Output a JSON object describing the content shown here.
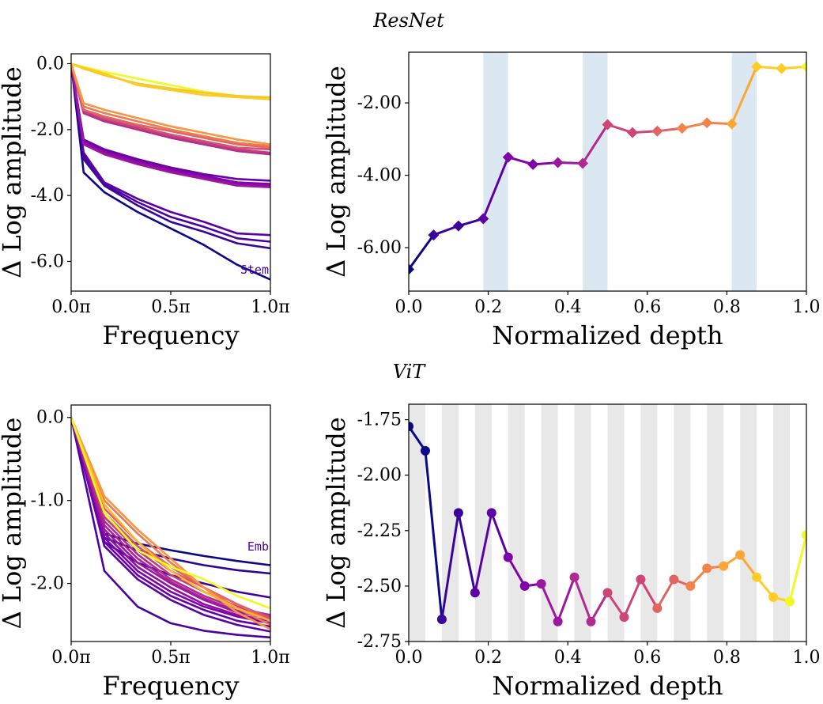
{
  "titles": {
    "resnet": "ResNet",
    "vit": "ViT"
  },
  "chart_data": [
    {
      "type": "line",
      "xlabel": "Frequency",
      "ylabel": "Δ Log amplitude",
      "xlim": [
        0,
        1
      ],
      "ylim": [
        -6.9,
        0.3
      ],
      "xticks": [
        {
          "v": 0,
          "label": "0.0π"
        },
        {
          "v": 0.5,
          "label": "0.5π"
        },
        {
          "v": 1,
          "label": "1.0π"
        }
      ],
      "yticks": [
        {
          "v": 0,
          "label": "0.0"
        },
        {
          "v": -2,
          "label": "-2.0"
        },
        {
          "v": -4,
          "label": "-4.0"
        },
        {
          "v": -6,
          "label": "-6.0"
        }
      ],
      "annotation": "Stem",
      "x": [
        0,
        0.0625,
        0.1667,
        0.3333,
        0.5,
        0.6667,
        0.8333,
        1.0
      ],
      "series": [
        {
          "color": "#0d0887",
          "values": [
            0,
            -3.3,
            -3.9,
            -4.5,
            -5.0,
            -5.5,
            -6.1,
            -6.55
          ]
        },
        {
          "color": "#3a049a",
          "values": [
            0,
            -2.9,
            -3.7,
            -4.3,
            -4.8,
            -5.1,
            -5.45,
            -5.6
          ]
        },
        {
          "color": "#4c02a1",
          "values": [
            0,
            -2.8,
            -3.65,
            -4.2,
            -4.65,
            -4.95,
            -5.3,
            -5.4
          ]
        },
        {
          "color": "#5c01a6",
          "values": [
            0,
            -2.7,
            -3.6,
            -4.1,
            -4.5,
            -4.8,
            -5.15,
            -5.2
          ]
        },
        {
          "color": "#6a00a8",
          "values": [
            0,
            -2.3,
            -2.6,
            -2.9,
            -3.15,
            -3.35,
            -3.5,
            -3.55
          ]
        },
        {
          "color": "#7e03a8",
          "values": [
            0,
            -2.35,
            -2.65,
            -2.95,
            -3.2,
            -3.4,
            -3.6,
            -3.65
          ]
        },
        {
          "color": "#8f0da4",
          "values": [
            0,
            -2.4,
            -2.7,
            -3.0,
            -3.25,
            -3.45,
            -3.65,
            -3.7
          ]
        },
        {
          "color": "#9c179e",
          "values": [
            0,
            -2.45,
            -2.75,
            -3.05,
            -3.3,
            -3.5,
            -3.7,
            -3.75
          ]
        },
        {
          "color": "#b12a90",
          "values": [
            0,
            -1.5,
            -1.75,
            -2.0,
            -2.25,
            -2.45,
            -2.65,
            -2.75
          ]
        },
        {
          "color": "#c43c7f",
          "values": [
            0,
            -1.45,
            -1.7,
            -1.95,
            -2.2,
            -2.4,
            -2.6,
            -2.7
          ]
        },
        {
          "color": "#d35171",
          "values": [
            0,
            -1.4,
            -1.65,
            -1.9,
            -2.15,
            -2.35,
            -2.55,
            -2.6
          ]
        },
        {
          "color": "#e16462",
          "values": [
            0,
            -1.4,
            -1.6,
            -1.85,
            -2.05,
            -2.25,
            -2.45,
            -2.55
          ]
        },
        {
          "color": "#ed7953",
          "values": [
            0,
            -1.3,
            -1.5,
            -1.75,
            -2.0,
            -2.2,
            -2.4,
            -2.5
          ]
        },
        {
          "color": "#f89540",
          "values": [
            0,
            -1.2,
            -1.4,
            -1.65,
            -1.9,
            -2.1,
            -2.3,
            -2.45
          ]
        },
        {
          "color": "#f0f921",
          "values": [
            0,
            -0.1,
            -0.25,
            -0.45,
            -0.65,
            -0.85,
            -0.98,
            -1.05
          ]
        },
        {
          "color": "#f1c92c",
          "values": [
            0,
            -0.15,
            -0.35,
            -0.6,
            -0.75,
            -0.88,
            -0.98,
            -1.02
          ]
        },
        {
          "color": "#fccc25",
          "values": [
            0,
            -0.12,
            -0.3,
            -0.65,
            -0.8,
            -0.95,
            -1.02,
            -1.08
          ]
        }
      ]
    },
    {
      "type": "line",
      "xlabel": "Normalized depth",
      "ylabel": "Δ Log amplitude",
      "xlim": [
        0,
        1
      ],
      "ylim": [
        -7.2,
        -0.6
      ],
      "xticks": [
        {
          "v": 0,
          "label": "0.0"
        },
        {
          "v": 0.2,
          "label": "0.2"
        },
        {
          "v": 0.4,
          "label": "0.4"
        },
        {
          "v": 0.6,
          "label": "0.6"
        },
        {
          "v": 0.8,
          "label": "0.8"
        },
        {
          "v": 1,
          "label": "1.0"
        }
      ],
      "yticks": [
        {
          "v": -2,
          "label": "-2.00"
        },
        {
          "v": -4,
          "label": "-4.00"
        },
        {
          "v": -6,
          "label": "-6.00"
        }
      ],
      "marker": "diamond",
      "shaded_ranges": [
        [
          0.1875,
          0.25
        ],
        [
          0.4375,
          0.5
        ],
        [
          0.8125,
          0.875
        ]
      ],
      "shade_color": "#dce8f1",
      "x": [
        0,
        0.0625,
        0.125,
        0.1875,
        0.25,
        0.3125,
        0.375,
        0.4375,
        0.5,
        0.5625,
        0.625,
        0.6875,
        0.75,
        0.8125,
        0.875,
        0.9375,
        1.0
      ],
      "values": [
        -6.6,
        -5.65,
        -5.4,
        -5.2,
        -3.5,
        -3.7,
        -3.65,
        -3.67,
        -2.6,
        -2.82,
        -2.78,
        -2.7,
        -2.55,
        -2.58,
        -1.0,
        -1.05,
        -1.0
      ]
    },
    {
      "type": "line",
      "xlabel": "Frequency",
      "ylabel": "Δ Log amplitude",
      "xlim": [
        0,
        1
      ],
      "ylim": [
        -2.7,
        0.15
      ],
      "xticks": [
        {
          "v": 0,
          "label": "0.0π"
        },
        {
          "v": 0.5,
          "label": "0.5π"
        },
        {
          "v": 1,
          "label": "1.0π"
        }
      ],
      "yticks": [
        {
          "v": 0,
          "label": "0.0"
        },
        {
          "v": -1,
          "label": "-1.0"
        },
        {
          "v": -2,
          "label": "-2.0"
        }
      ],
      "annotation": "Emb",
      "x": [
        0,
        0.1667,
        0.3333,
        0.5,
        0.6667,
        0.8333,
        1.0
      ],
      "series": [
        {
          "color": "#0d0887",
          "values": [
            0,
            -1.4,
            -1.52,
            -1.6,
            -1.67,
            -1.73,
            -1.78
          ]
        },
        {
          "color": "#2c0594",
          "values": [
            0,
            -1.45,
            -1.6,
            -1.7,
            -1.78,
            -1.84,
            -1.88
          ]
        },
        {
          "color": "#3a049a",
          "values": [
            0,
            -1.5,
            -1.75,
            -1.9,
            -2.0,
            -2.1,
            -2.17
          ]
        },
        {
          "color": "#4c02a1",
          "values": [
            0,
            -1.85,
            -2.28,
            -2.48,
            -2.57,
            -2.62,
            -2.65
          ]
        },
        {
          "color": "#5c01a6",
          "values": [
            0,
            -1.55,
            -1.95,
            -2.2,
            -2.38,
            -2.5,
            -2.58
          ]
        },
        {
          "color": "#6a00a8",
          "values": [
            0,
            -1.5,
            -1.9,
            -2.15,
            -2.32,
            -2.45,
            -2.52
          ]
        },
        {
          "color": "#7e03a8",
          "values": [
            0,
            -1.45,
            -1.85,
            -2.1,
            -2.28,
            -2.4,
            -2.48
          ]
        },
        {
          "color": "#8f0da4",
          "values": [
            0,
            -1.4,
            -1.8,
            -2.05,
            -2.25,
            -2.38,
            -2.45
          ]
        },
        {
          "color": "#9c179e",
          "values": [
            0,
            -1.35,
            -1.75,
            -2.0,
            -2.2,
            -2.35,
            -2.42
          ]
        },
        {
          "color": "#a72197",
          "values": [
            0,
            -1.3,
            -1.7,
            -1.98,
            -2.18,
            -2.33,
            -2.4
          ]
        },
        {
          "color": "#b12a90",
          "values": [
            0,
            -1.25,
            -1.65,
            -1.95,
            -2.15,
            -2.3,
            -2.38
          ]
        },
        {
          "color": "#c43c7f",
          "values": [
            0,
            -1.2,
            -1.6,
            -1.9,
            -2.1,
            -2.28,
            -2.4
          ]
        },
        {
          "color": "#d35171",
          "values": [
            0,
            -1.15,
            -1.55,
            -1.85,
            -2.05,
            -2.25,
            -2.42
          ]
        },
        {
          "color": "#e16462",
          "values": [
            0,
            -1.1,
            -1.5,
            -1.8,
            -2.05,
            -2.25,
            -2.45
          ]
        },
        {
          "color": "#ed7953",
          "values": [
            0,
            -1.0,
            -1.4,
            -1.75,
            -2.05,
            -2.3,
            -2.5
          ]
        },
        {
          "color": "#f89540",
          "values": [
            0,
            -0.95,
            -1.35,
            -1.7,
            -2.05,
            -2.35,
            -2.55
          ]
        },
        {
          "color": "#fdb42f",
          "values": [
            0,
            -1.05,
            -1.5,
            -1.85,
            -2.1,
            -2.3,
            -2.45
          ]
        },
        {
          "color": "#f0f921",
          "values": [
            0,
            -1.15,
            -1.6,
            -1.8,
            -1.95,
            -2.15,
            -2.3
          ]
        }
      ]
    },
    {
      "type": "line",
      "xlabel": "Normalized depth",
      "ylabel": "Δ Log amplitude",
      "xlim": [
        0,
        1
      ],
      "ylim": [
        -2.75,
        -1.68
      ],
      "xticks": [
        {
          "v": 0,
          "label": "0.0"
        },
        {
          "v": 0.2,
          "label": "0.2"
        },
        {
          "v": 0.4,
          "label": "0.4"
        },
        {
          "v": 0.6,
          "label": "0.6"
        },
        {
          "v": 0.8,
          "label": "0.8"
        },
        {
          "v": 1,
          "label": "1.0"
        }
      ],
      "yticks": [
        {
          "v": -1.75,
          "label": "-1.75"
        },
        {
          "v": -2.0,
          "label": "-2.00"
        },
        {
          "v": -2.25,
          "label": "-2.25"
        },
        {
          "v": -2.5,
          "label": "-2.50"
        },
        {
          "v": -2.75,
          "label": "-2.75"
        }
      ],
      "marker": "circle",
      "shaded_ranges": [
        [
          0.0,
          0.0417
        ],
        [
          0.0833,
          0.125
        ],
        [
          0.1667,
          0.2083
        ],
        [
          0.25,
          0.2917
        ],
        [
          0.3333,
          0.375
        ],
        [
          0.4167,
          0.4583
        ],
        [
          0.5,
          0.5417
        ],
        [
          0.5833,
          0.625
        ],
        [
          0.6667,
          0.7083
        ],
        [
          0.75,
          0.7917
        ],
        [
          0.8333,
          0.875
        ],
        [
          0.9167,
          0.9583
        ]
      ],
      "shade_color": "#e8e8e8",
      "x": [
        0,
        0.0417,
        0.0833,
        0.125,
        0.1667,
        0.2083,
        0.25,
        0.2917,
        0.3333,
        0.375,
        0.4167,
        0.4583,
        0.5,
        0.5417,
        0.5833,
        0.625,
        0.6667,
        0.7083,
        0.75,
        0.7917,
        0.8333,
        0.875,
        0.9167,
        0.9583,
        1.0
      ],
      "values": [
        -1.78,
        -1.89,
        -2.65,
        -2.17,
        -2.53,
        -2.17,
        -2.37,
        -2.5,
        -2.49,
        -2.66,
        -2.46,
        -2.66,
        -2.53,
        -2.64,
        -2.47,
        -2.6,
        -2.47,
        -2.5,
        -2.42,
        -2.41,
        -2.36,
        -2.46,
        -2.55,
        -2.57,
        -2.27
      ]
    }
  ]
}
